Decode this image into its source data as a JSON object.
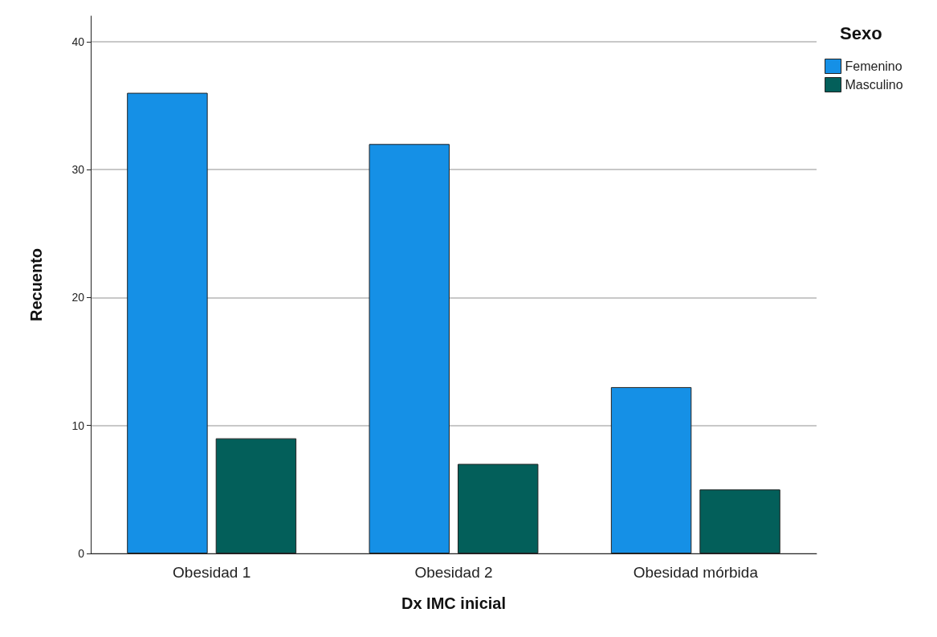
{
  "chart_data": {
    "type": "bar",
    "xlabel": "Dx IMC inicial",
    "ylabel": "Recuento",
    "legend_title": "Sexo",
    "categories": [
      "Obesidad 1",
      "Obesidad 2",
      "Obesidad mórbida"
    ],
    "series": [
      {
        "name": "Femenino",
        "color": "#1590e6",
        "values": [
          36,
          32,
          13
        ]
      },
      {
        "name": "Masculino",
        "color": "#035f5a",
        "values": [
          9,
          7,
          5
        ]
      }
    ],
    "ylim": [
      0,
      42
    ],
    "yticks": [
      0,
      10,
      20,
      30,
      40
    ],
    "grid": "y",
    "legend": "top right"
  }
}
